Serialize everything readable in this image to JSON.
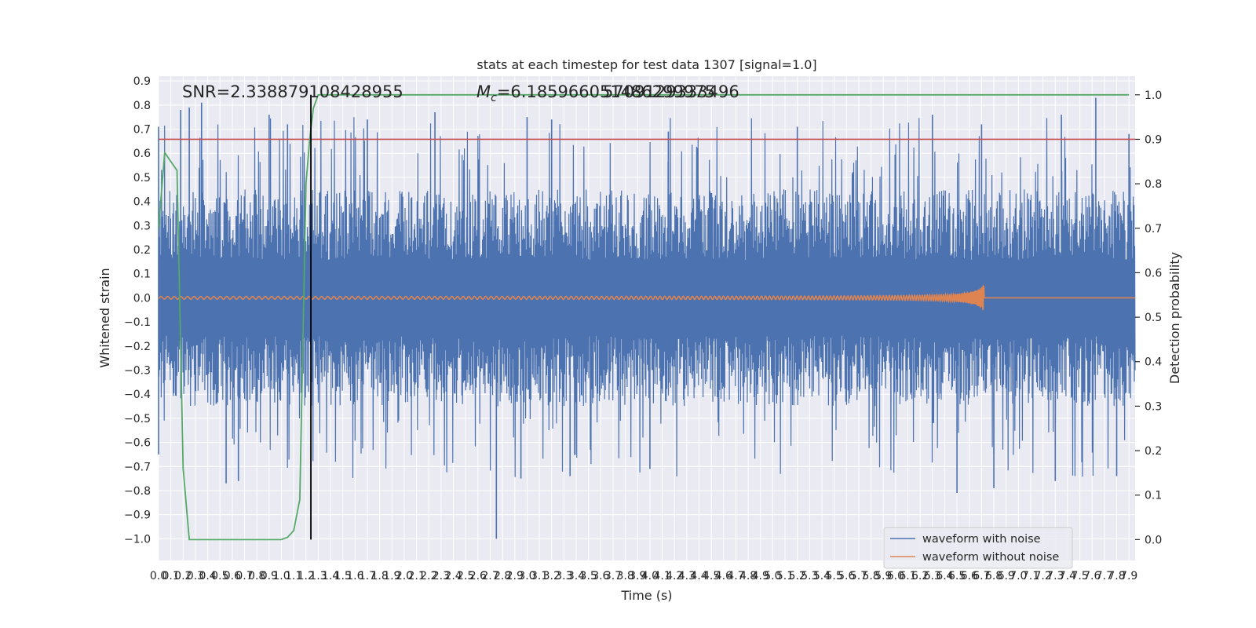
{
  "chart_data": {
    "type": "line",
    "title": "stats at each timestep for test data 1307 [signal=1.0]",
    "xlabel": "Time (s)",
    "ylabel": "Whitened strain",
    "y2label": "Detection probability",
    "xlim": [
      0.0,
      7.95
    ],
    "ylim": [
      -1.09,
      0.92
    ],
    "y2lim": [
      -0.047,
      1.042
    ],
    "x_ticks": [
      0.0,
      0.1,
      0.2,
      0.3,
      0.4,
      0.5,
      0.6,
      0.7,
      0.8,
      0.9,
      1.0,
      1.1,
      1.2,
      1.3,
      1.4,
      1.5,
      1.6,
      1.7,
      1.8,
      1.9,
      2.0,
      2.1,
      2.2,
      2.3,
      2.4,
      2.5,
      2.6,
      2.7,
      2.8,
      2.9,
      3.0,
      3.1,
      3.2,
      3.3,
      3.4,
      3.5,
      3.6,
      3.7,
      3.8,
      3.9,
      4.0,
      4.1,
      4.2,
      4.3,
      4.4,
      4.5,
      4.6,
      4.7,
      4.8,
      4.9,
      5.0,
      5.1,
      5.2,
      5.3,
      5.4,
      5.5,
      5.6,
      5.7,
      5.8,
      5.9,
      6.0,
      6.1,
      6.2,
      6.3,
      6.4,
      6.5,
      6.6,
      6.7,
      6.8,
      6.9,
      7.0,
      7.1,
      7.2,
      7.3,
      7.4,
      7.5,
      7.6,
      7.7,
      7.8,
      7.9
    ],
    "x_tick_labels": [
      "0.0",
      "0.1",
      "0.2",
      "0.3",
      "0.4",
      "0.5",
      "0.6",
      "0.7",
      "0.8",
      "0.9",
      "1.0",
      "1.1",
      "1.2",
      "1.3",
      "1.4",
      "1.5",
      "1.6",
      "1.7",
      "1.8",
      "1.9",
      "2.0",
      "2.1",
      "2.2",
      "2.3",
      "2.4",
      "2.5",
      "2.6",
      "2.7",
      "2.8",
      "2.9",
      "3.0",
      "3.1",
      "3.2",
      "3.3",
      "3.4",
      "3.5",
      "3.6",
      "3.7",
      "3.8",
      "3.9",
      "4.0",
      "4.1",
      "4.2",
      "4.3",
      "4.4",
      "4.5",
      "4.6",
      "4.7",
      "4.8",
      "4.9",
      "5.0",
      "5.1",
      "5.2",
      "5.3",
      "5.4",
      "5.5",
      "5.6",
      "5.7",
      "5.8",
      "5.9",
      "6.0",
      "6.1",
      "6.2",
      "6.3",
      "6.4",
      "6.5",
      "6.6",
      "6.7",
      "6.8",
      "6.9",
      "7.0",
      "7.1",
      "7.2",
      "7.3",
      "7.4",
      "7.5",
      "7.6",
      "7.7",
      "7.8",
      "7.9"
    ],
    "y_ticks": [
      0.9,
      0.8,
      0.7,
      0.6,
      0.5,
      0.4,
      0.3,
      0.2,
      0.1,
      0.0,
      -0.1,
      -0.2,
      -0.3,
      -0.4,
      -0.5,
      -0.6,
      -0.7,
      -0.8,
      -0.9,
      -1.0
    ],
    "y_tick_labels": [
      "0.9",
      "0.8",
      "0.7",
      "0.6",
      "0.5",
      "0.4",
      "0.3",
      "0.2",
      "0.1",
      "0.0",
      "−0.1",
      "−0.2",
      "−0.3",
      "−0.4",
      "−0.5",
      "−0.6",
      "−0.7",
      "−0.8",
      "−0.9",
      "−1.0"
    ],
    "y2_ticks": [
      1.0,
      0.9,
      0.8,
      0.7,
      0.6,
      0.5,
      0.4,
      0.3,
      0.2,
      0.1,
      0.0
    ],
    "y2_tick_labels": [
      "1.0",
      "0.9",
      "0.8",
      "0.7",
      "0.6",
      "0.5",
      "0.4",
      "0.3",
      "0.2",
      "0.1",
      "0.0"
    ],
    "annotations": {
      "snr": "SNR=2.338879108428955",
      "mc_symbol": "M",
      "mc_sub": "c",
      "mc_value": "=6.185966051486299975",
      "mc_overlap": "5709129333496"
    },
    "series": [
      {
        "name": "waveform with noise",
        "color": "#4c72b0",
        "kind": "noise",
        "envelope_typical": 0.45,
        "peaks": [
          [
            0.0,
            0.71
          ],
          [
            0.18,
            0.78
          ],
          [
            0.25,
            0.79
          ],
          [
            0.35,
            0.81
          ],
          [
            0.9,
            0.76
          ],
          [
            1.05,
            0.72
          ],
          [
            1.7,
            0.74
          ],
          [
            2.25,
            0.77
          ],
          [
            3.0,
            0.75
          ],
          [
            3.2,
            0.74
          ],
          [
            4.15,
            0.69
          ],
          [
            5.2,
            0.71
          ],
          [
            6.3,
            0.76
          ],
          [
            6.7,
            0.72
          ],
          [
            7.35,
            0.76
          ],
          [
            7.63,
            0.83
          ],
          [
            7.9,
            0.68
          ]
        ],
        "troughs": [
          [
            0.0,
            -0.65
          ],
          [
            0.55,
            -0.77
          ],
          [
            0.65,
            -0.76
          ],
          [
            2.75,
            -1.0
          ],
          [
            2.95,
            -0.75
          ],
          [
            3.35,
            -0.74
          ],
          [
            4.0,
            -0.71
          ],
          [
            6.5,
            -0.81
          ],
          [
            6.8,
            -0.79
          ],
          [
            7.3,
            -0.76
          ],
          [
            7.8,
            -0.74
          ]
        ]
      },
      {
        "name": "waveform without noise",
        "color": "#dd8452",
        "kind": "chirp",
        "start_amplitude": 0.005,
        "end_amplitude": 0.06,
        "merger_time": 6.72
      }
    ],
    "detection_probability": {
      "color": "#55a868",
      "axis": "right",
      "x": [
        0.0,
        0.05,
        0.1,
        0.15,
        0.2,
        0.25,
        0.3,
        0.4,
        0.5,
        0.6,
        0.7,
        0.8,
        0.9,
        1.0,
        1.05,
        1.1,
        1.15,
        1.2,
        1.23,
        1.26,
        1.3,
        1.5,
        2.0,
        3.0,
        4.0,
        5.0,
        6.0,
        7.0,
        7.9
      ],
      "y": [
        0.7,
        0.87,
        0.85,
        0.83,
        0.16,
        0.0,
        0.0,
        0.0,
        0.0,
        0.0,
        0.0,
        0.0,
        0.0,
        0.0,
        0.005,
        0.02,
        0.09,
        0.8,
        0.9,
        0.97,
        1.0,
        1.0,
        1.0,
        1.0,
        1.0,
        1.0,
        1.0,
        1.0,
        1.0
      ]
    },
    "threshold": {
      "value": 0.9,
      "axis": "right",
      "color": "#c44e52"
    },
    "trigger_time": {
      "x": 1.24,
      "color": "#000000"
    },
    "legend": {
      "placement": "lower-right",
      "entries": [
        "waveform with noise",
        "waveform without noise"
      ]
    },
    "grid": true
  }
}
